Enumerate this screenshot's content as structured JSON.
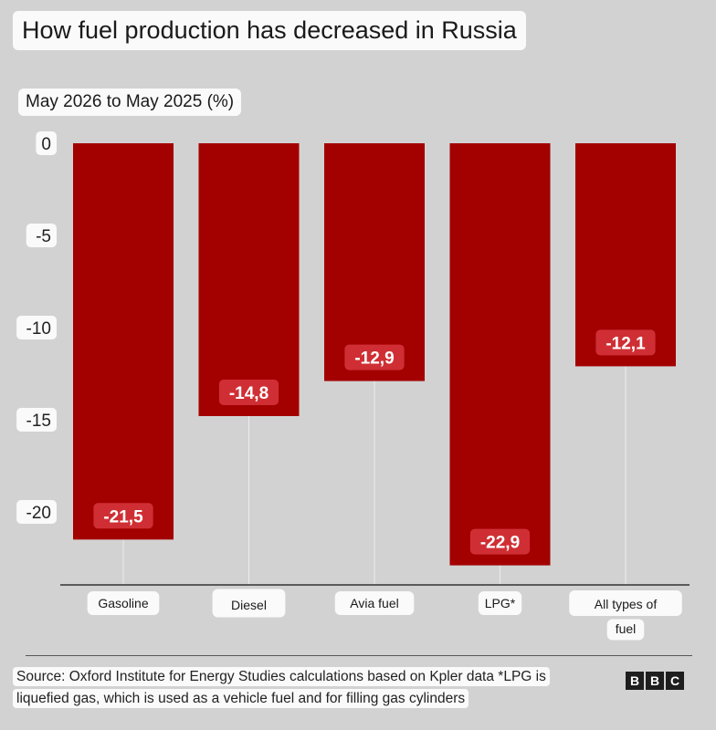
{
  "chart_data": {
    "type": "bar",
    "title": "How fuel production has decreased in Russia",
    "subtitle": "May 2026 to May 2025 (%)",
    "categories": [
      "Gasoline",
      "Diesel",
      "Avia fuel",
      "LPG*",
      "All types of fuel"
    ],
    "category_lines": [
      [
        "Gasoline"
      ],
      [
        "Diesel"
      ],
      [
        "Avia fuel"
      ],
      [
        "LPG*"
      ],
      [
        "All types of",
        "fuel"
      ]
    ],
    "values": [
      -21.5,
      -14.8,
      -12.9,
      -22.9,
      -12.1
    ],
    "value_labels": [
      "-21,5",
      "-14,8",
      "-12,9",
      "-22,9",
      "-12,1"
    ],
    "yticks": [
      0,
      -5,
      -10,
      -15,
      -20
    ],
    "ytick_labels": [
      "0",
      "-5",
      "-10",
      "-15",
      "-20"
    ],
    "ylim": [
      -24,
      0
    ],
    "grid": false,
    "colors": {
      "bar": "#a30000",
      "label_bg": "#cf2f34",
      "background": "#d2d2d2"
    }
  },
  "source": "Source: Oxford Institute for Energy Studies calculations based on Kpler data *LPG is liquefied gas, which is used as a vehicle fuel and for filling gas cylinders",
  "brand": [
    "B",
    "B",
    "C"
  ]
}
